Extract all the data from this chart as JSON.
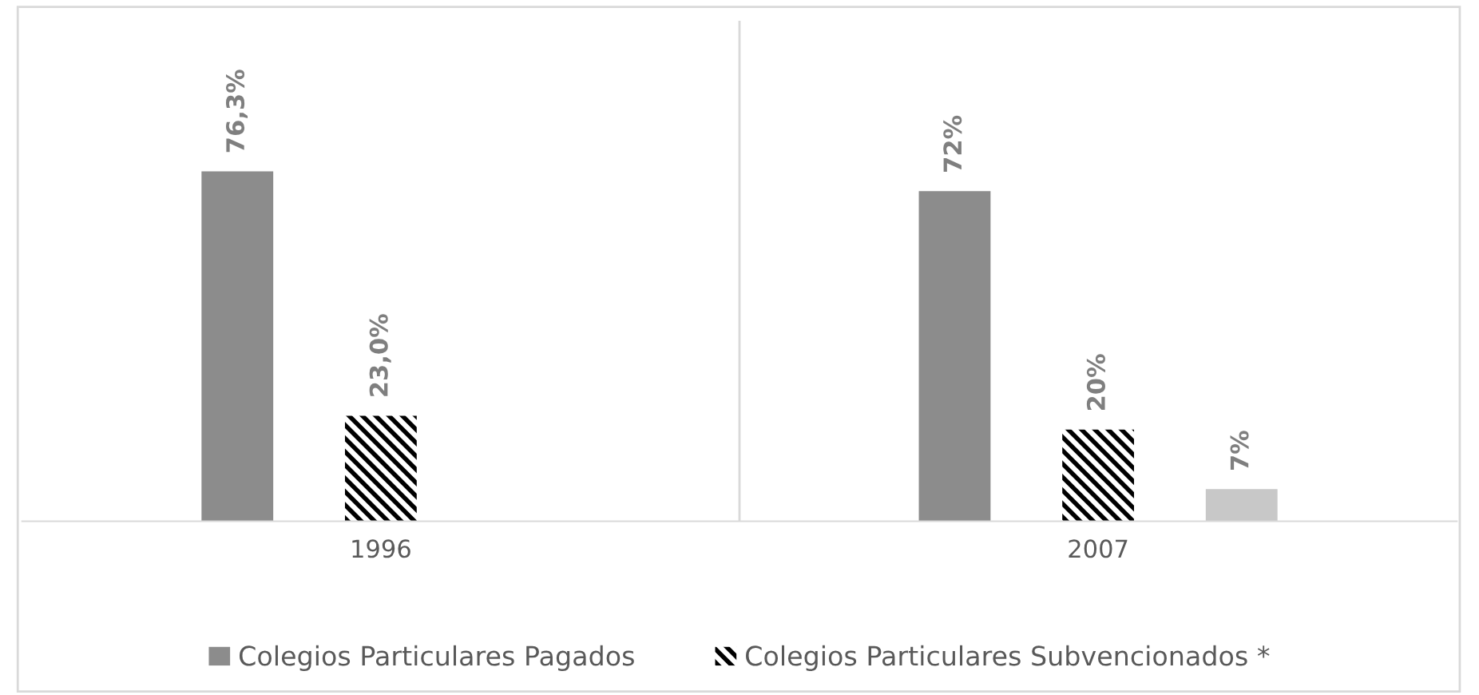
{
  "chart_data": {
    "type": "bar",
    "categories": [
      "1996",
      "2007"
    ],
    "series": [
      {
        "name": "Colegios Particulares Pagados",
        "color": "#8c8c8c",
        "values": [
          76.3,
          72
        ],
        "value_labels": [
          "76,3%",
          "72%"
        ]
      },
      {
        "name": "Colegios Particulares Subvencionados *",
        "color": "#000000",
        "values": [
          23.0,
          20
        ],
        "value_labels": [
          "23,0%",
          "20%"
        ]
      },
      {
        "color": "#c8c8c8",
        "values": [
          null,
          7
        ],
        "value_labels": [
          null,
          "7%"
        ]
      }
    ],
    "legend": "bottom",
    "grid": false
  }
}
